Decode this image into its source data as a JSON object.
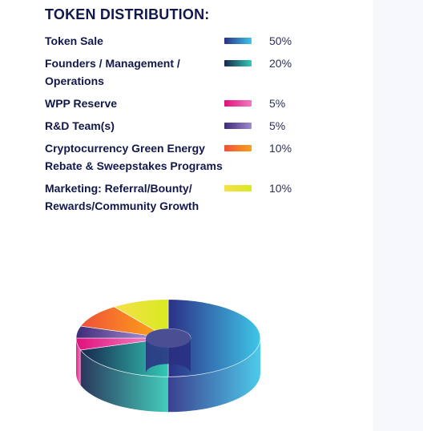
{
  "title": "TOKEN DISTRIBUTION:",
  "chart_data": {
    "type": "pie",
    "title": "TOKEN DISTRIBUTION:",
    "slices": [
      {
        "label": "Token Sale",
        "value": 50,
        "display": "50%",
        "color_a": "#2b2f86",
        "color_b": "#3ec6e8"
      },
      {
        "label": "Founders / Management / Operations",
        "value": 20,
        "display": "20%",
        "color_a": "#17264d",
        "color_b": "#34c9b6"
      },
      {
        "label": "WPP Reserve",
        "value": 5,
        "display": "5%",
        "color_a": "#e0107a",
        "color_b": "#f07ac0"
      },
      {
        "label": "R&D Team(s)",
        "value": 5,
        "display": "5%",
        "color_a": "#3e2b78",
        "color_b": "#a08ad0"
      },
      {
        "label": "Cryptocurrency Green Energy Rebate & Sweepstakes Programs",
        "value": 10,
        "display": "10%",
        "color_a": "#f0503a",
        "color_b": "#fca018"
      },
      {
        "label": "Marketing: Referral/Bounty/ Rewards/Community Growth",
        "value": 10,
        "display": "10%",
        "color_a": "#f6e04a",
        "color_b": "#d8ea20"
      }
    ]
  }
}
